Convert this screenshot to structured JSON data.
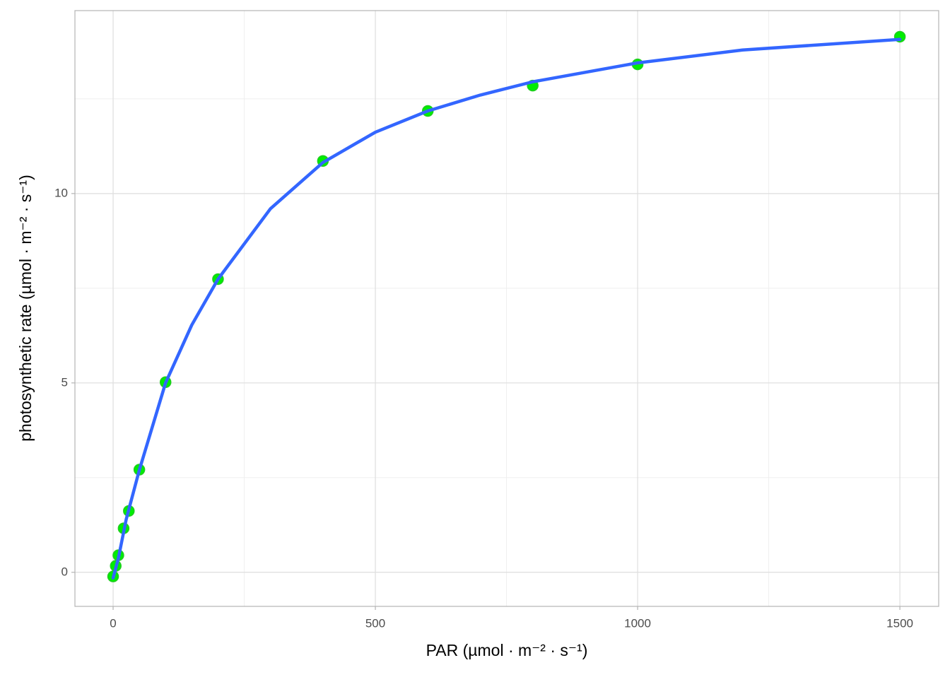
{
  "chart_data": {
    "type": "scatter",
    "x_label": "PAR (µmol · m⁻² · s⁻¹)",
    "y_label": "photosynthetic rate  (µmol · m⁻² · s⁻¹)",
    "xlim": [
      -72.8,
      1574
    ],
    "ylim": [
      -0.9,
      14.83
    ],
    "xticks": [
      0,
      500,
      1000,
      1500
    ],
    "yticks": [
      0,
      5,
      10
    ],
    "minor_xticks": [
      250,
      750,
      1250
    ],
    "minor_yticks": [
      2.5,
      7.5,
      12.5
    ],
    "grid": true,
    "series": [
      {
        "mode": "markers",
        "color": "#00ee00",
        "x": [
          0,
          5,
          10,
          20,
          30,
          50,
          100,
          200,
          400,
          600,
          800,
          1000,
          1500
        ],
        "values": [
          -0.11,
          0.17,
          0.45,
          1.16,
          1.62,
          2.71,
          5.02,
          7.74,
          10.86,
          12.18,
          12.85,
          13.41,
          14.14
        ]
      },
      {
        "mode": "line",
        "color": "#3366ff",
        "x": [
          0,
          10,
          25,
          50,
          100,
          150,
          200,
          300,
          400,
          500,
          600,
          700,
          800,
          1000,
          1200,
          1500
        ],
        "values": [
          -0.15,
          0.37,
          1.4,
          2.7,
          5.0,
          6.53,
          7.74,
          9.6,
          10.82,
          11.62,
          12.18,
          12.6,
          12.95,
          13.45,
          13.79,
          14.07
        ]
      }
    ]
  }
}
